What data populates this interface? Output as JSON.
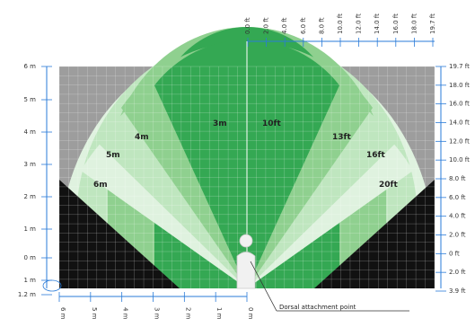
{
  "left_axis": {
    "labels": [
      "6 m",
      "5 m",
      "4 m",
      "3 m",
      "2 m",
      "1 m",
      "0 m",
      "1 m",
      "1.2 m"
    ]
  },
  "right_axis": {
    "labels": [
      "19.7 ft",
      "18.0 ft",
      "16.0 ft",
      "14.0 ft",
      "12.0 ft",
      "10.0 ft",
      "8.0 ft",
      "6.0 ft",
      "4.0 ft",
      "2.0 ft",
      "0 ft",
      "2.0 ft",
      "3.9 ft"
    ]
  },
  "top_axis": {
    "labels": [
      "0.0 ft",
      "2.0 ft",
      "4.0 ft",
      "6.0 ft",
      "8.0 ft",
      "10.0 ft",
      "12.0 ft",
      "14.0 ft",
      "16.0 ft",
      "18.0 ft",
      "19.7 ft"
    ]
  },
  "bottom_axis": {
    "labels": [
      "6 m",
      "5 m",
      "4 m",
      "3 m",
      "2 m",
      "1 m",
      "0 m"
    ]
  },
  "zones": {
    "labels_m": [
      "3m",
      "4m",
      "5m",
      "6m"
    ],
    "labels_ft": [
      "10ft",
      "13ft",
      "16ft",
      "20ft"
    ]
  },
  "callout": {
    "text": "Dorsal attachment point"
  },
  "colors": {
    "outside": "#9d9d9d",
    "dark": "#111111",
    "zone_3m": "#34a853",
    "zone_4m": "#8fd08f",
    "zone_5m": "#bfe6bf",
    "zone_6m": "#dff2df",
    "grid_light": "#ffffff",
    "grid_dark": "#e0a080"
  }
}
